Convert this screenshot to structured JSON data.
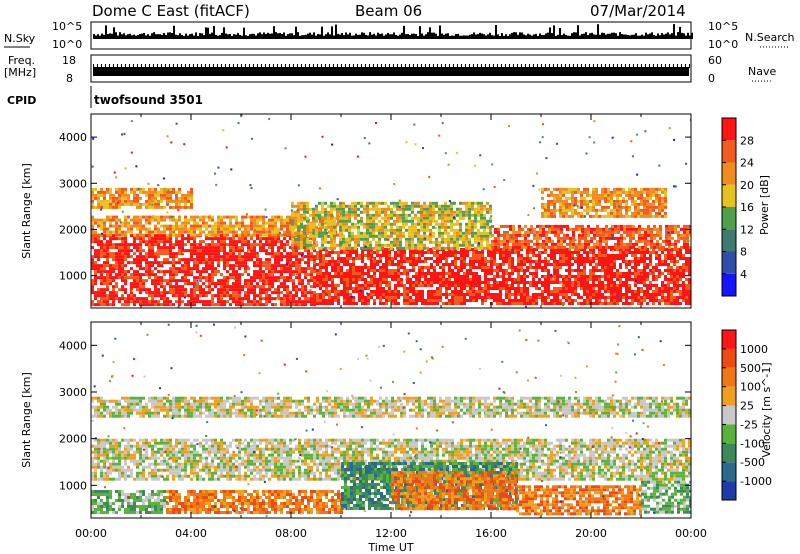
{
  "header": {
    "title": "Dome C East (fitACF)",
    "beam": "Beam 06",
    "date": "07/Mar/2014"
  },
  "nsky_panel": {
    "label": "N.Sky",
    "right_label": "N.Search",
    "tick_top": "10^5",
    "tick_bottom": "10^0",
    "right_tick_top": "10^5",
    "right_tick_bottom": "10^0"
  },
  "freq_panel": {
    "label_line1": "Freq.",
    "label_line2": "[MHz]",
    "right_label": "Nave",
    "tick_top": "18",
    "tick_bottom": "8",
    "right_tick_top": "60",
    "right_tick_bottom": "0"
  },
  "cpid": {
    "label": "CPID",
    "value": "twofsound 3501"
  },
  "time_axis": {
    "label": "Time UT",
    "ticks": [
      "00:00",
      "04:00",
      "08:00",
      "12:00",
      "16:00",
      "20:00",
      "00:00"
    ]
  },
  "chart_data": [
    {
      "type": "heatmap",
      "name": "Power",
      "ylabel": "Slant Range [km]",
      "xlabel": "Time UT",
      "yticks": [
        1000,
        2000,
        3000,
        4000
      ],
      "ylim": [
        300,
        4500
      ],
      "xlim_hours": [
        0,
        24
      ],
      "colorbar": {
        "label": "Power [dB]",
        "ticks": [
          "4",
          "8",
          "12",
          "16",
          "20",
          "24",
          "28"
        ],
        "colors": [
          "#1414ff",
          "#2e4fa8",
          "#3f7a6e",
          "#4ea04c",
          "#e6c21e",
          "#f08c1e",
          "#f25a1e",
          "#ff1414"
        ]
      },
      "bands": [
        {
          "from_h": 0,
          "to_h": 9,
          "lo_km": 400,
          "hi_km": 1900,
          "level": 7
        },
        {
          "from_h": 0,
          "to_h": 10,
          "lo_km": 1900,
          "hi_km": 2300,
          "level": 5
        },
        {
          "from_h": 9,
          "to_h": 24,
          "lo_km": 400,
          "hi_km": 1600,
          "level": 7
        },
        {
          "from_h": 8,
          "to_h": 16,
          "lo_km": 1600,
          "hi_km": 2600,
          "level": 4
        },
        {
          "from_h": 0,
          "to_h": 4,
          "lo_km": 2500,
          "hi_km": 2900,
          "level": 5
        },
        {
          "from_h": 16,
          "to_h": 24,
          "lo_km": 1600,
          "hi_km": 2100,
          "level": 6
        },
        {
          "from_h": 18,
          "to_h": 23,
          "lo_km": 2300,
          "hi_km": 2900,
          "level": 5
        }
      ]
    },
    {
      "type": "heatmap",
      "name": "Velocity",
      "ylabel": "Slant Range [km]",
      "xlabel": "Time UT",
      "yticks": [
        1000,
        2000,
        3000,
        4000
      ],
      "ylim": [
        300,
        4500
      ],
      "xlim_hours": [
        0,
        24
      ],
      "colorbar": {
        "label": "Velocity [m s^-1]",
        "ticks": [
          "1000",
          "500",
          "100",
          "25",
          "-25",
          "-100",
          "-500",
          "-1000"
        ],
        "colors": [
          "#1e3ca8",
          "#2c6a8c",
          "#3c8a5a",
          "#5ab43c",
          "#c8c8c8",
          "#f0a01e",
          "#f07814",
          "#f04a14",
          "#ff1414"
        ]
      },
      "bands": [
        {
          "from_h": 0,
          "to_h": 24,
          "lo_km": 1100,
          "hi_km": 2000,
          "level": 4
        },
        {
          "from_h": 0,
          "to_h": 3,
          "lo_km": 400,
          "hi_km": 900,
          "level": 3
        },
        {
          "from_h": 3,
          "to_h": 10,
          "lo_km": 400,
          "hi_km": 900,
          "level": 6
        },
        {
          "from_h": 10,
          "to_h": 17,
          "lo_km": 500,
          "hi_km": 1500,
          "level": 2
        },
        {
          "from_h": 12,
          "to_h": 17,
          "lo_km": 500,
          "hi_km": 1300,
          "level": 6
        },
        {
          "from_h": 17,
          "to_h": 22,
          "lo_km": 400,
          "hi_km": 1000,
          "level": 6
        },
        {
          "from_h": 22,
          "to_h": 24,
          "lo_km": 400,
          "hi_km": 1100,
          "level": 3
        },
        {
          "from_h": 0,
          "to_h": 24,
          "lo_km": 2500,
          "hi_km": 2900,
          "level": 4
        }
      ]
    }
  ]
}
